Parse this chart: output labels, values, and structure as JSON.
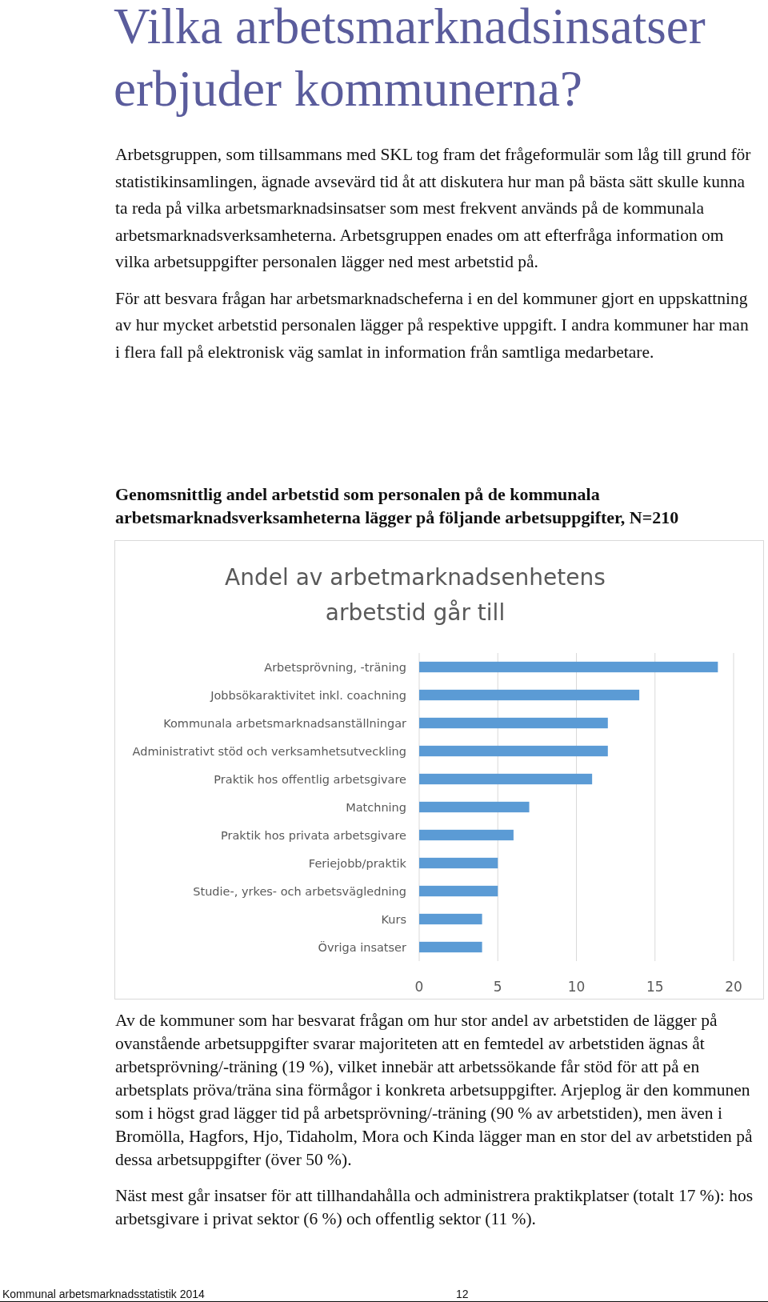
{
  "chart_data": {
    "type": "bar",
    "orientation": "horizontal",
    "title": "Andel av arbetmarknadsenhetens arbetstid går till",
    "categories": [
      "Arbetsprövning, -träning",
      "Jobbsökaraktivitet inkl. coachning",
      "Kommunala arbetsmarknadsanställningar",
      "Administrativt stöd och verksamhetsutveckling",
      "Praktik hos offentlig arbetsgivare",
      "Matchning",
      "Praktik hos privata arbetsgivare",
      "Feriejobb/praktik",
      "Studie-, yrkes- och arbetsvägledning",
      "Kurs",
      "Övriga insatser"
    ],
    "values": [
      19,
      14,
      12,
      12,
      11,
      7,
      6,
      5,
      5,
      4,
      4
    ],
    "color": "#5b9bd5",
    "xlim": [
      0,
      20
    ],
    "xticks": [
      0,
      5,
      10,
      15,
      20
    ],
    "grid": "x",
    "annotations": [
      "Vilka arbetsmarknadsinsatser erbjuder kommunerna?",
      "Arbetsgruppen, som tillsammans med SKL tog fram det frågeformulär som låg till grund för statistikinsamlingen, ägnade avsevärd tid åt att diskutera hur man på bästa sätt skulle kunna ta reda på vilka arbetsmarknadsinsatser som mest frekvent används på de kommunala arbetsmarknadsverksamheterna. Arbetsgruppen enades om att efterfråga information om vilka arbetsuppgifter personalen lägger ned mest arbetstid på.",
      "För att besvara frågan har arbetsmarknadscheferna i en del kommuner gjort en uppskattning av hur mycket arbetstid personalen lägger på respektive uppgift. I andra kommuner har man i flera fall på elektronisk väg samlat in information från samtliga medarbetare.",
      "Genomsnittlig andel arbetstid som personalen på de kommunala arbetsmarknadsverksamheterna lägger på följande arbetsuppgifter, N=210",
      "Av de kommuner som har besvarat frågan om hur stor andel av arbetstiden de lägger på ovanstående arbetsuppgifter svarar majoriteten att en femtedel av arbetstiden ägnas åt arbetsprövning/-träning (19 %), vilket innebär att arbetssökande får stöd för att på en arbetsplats pröva/träna sina förmågor i konkreta arbetsuppgifter. Arjeplog är den kommunen som i högst grad lägger tid på arbetsprövning/-träning (90 % av arbetstiden), men även i Bromölla, Hagfors, Hjo, Tidaholm, Mora och Kinda lägger man en stor del av arbetstiden på dessa arbetsuppgifter (över 50 %).",
      "Näst mest går insatser för att tillhandahålla och administrera praktikplatser (totalt 17 %): hos arbetsgivare i privat sektor (6 %) och offentlig sektor (11 %).",
      "Kommunal arbetsmarknadsstatistik 2014",
      "12"
    ]
  }
}
